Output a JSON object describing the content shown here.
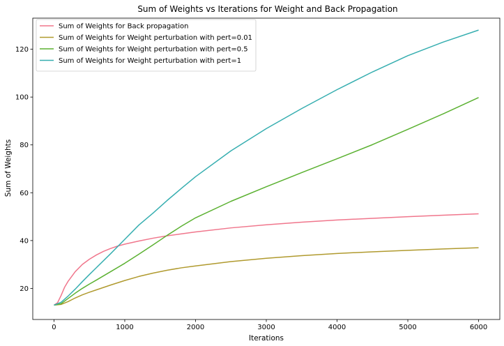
{
  "chart_data": {
    "type": "line",
    "title": "Sum of Weights vs Iterations for Weight and Back Propagation",
    "xlabel": "Iterations",
    "ylabel": "Sum of Weights",
    "xlim": [
      -300,
      6300
    ],
    "ylim": [
      7,
      133
    ],
    "xticks": [
      0,
      1000,
      2000,
      3000,
      4000,
      5000,
      6000
    ],
    "yticks": [
      20,
      40,
      60,
      80,
      100,
      120
    ],
    "grid": false,
    "legend_position": "top-left",
    "series": [
      {
        "name": "Sum of Weights for Back propagation",
        "color": "#f0768c",
        "x": [
          0,
          50,
          100,
          150,
          200,
          300,
          400,
          500,
          600,
          700,
          800,
          900,
          1000,
          1200,
          1400,
          1600,
          1800,
          2000,
          2500,
          3000,
          3500,
          4000,
          4500,
          5000,
          5500,
          6000
        ],
        "y": [
          13,
          14,
          17,
          20.5,
          23,
          27,
          30,
          32.2,
          34,
          35.5,
          36.7,
          37.7,
          38.5,
          39.8,
          41,
          42,
          42.8,
          43.6,
          45.3,
          46.6,
          47.7,
          48.6,
          49.3,
          50,
          50.6,
          51.2
        ]
      },
      {
        "name": "Sum of Weights for Weight perturbation with pert=0.01",
        "color": "#b09a2e",
        "x": [
          0,
          100,
          200,
          300,
          400,
          500,
          600,
          800,
          1000,
          1200,
          1400,
          1600,
          1800,
          2000,
          2500,
          3000,
          3500,
          4000,
          4500,
          5000,
          5500,
          6000
        ],
        "y": [
          13,
          13.3,
          14.5,
          16,
          17.3,
          18.4,
          19.4,
          21.4,
          23.3,
          25,
          26.4,
          27.6,
          28.6,
          29.4,
          31.2,
          32.6,
          33.7,
          34.6,
          35.3,
          35.9,
          36.5,
          37
        ]
      },
      {
        "name": "Sum of Weights for Weight perturbation with pert=0.5",
        "color": "#5bb131",
        "x": [
          0,
          100,
          200,
          300,
          400,
          500,
          600,
          800,
          1000,
          1200,
          1400,
          1600,
          1800,
          2000,
          2500,
          3000,
          3500,
          4000,
          4500,
          5000,
          5500,
          6000
        ],
        "y": [
          13,
          13.6,
          15.8,
          18,
          20,
          21.8,
          23.5,
          27,
          30.5,
          34.3,
          38.2,
          42.2,
          46,
          49.5,
          56.4,
          62.5,
          68.4,
          74.2,
          80.1,
          86.5,
          93,
          99.8
        ]
      },
      {
        "name": "Sum of Weights for Weight perturbation with pert=1",
        "color": "#36aeb0",
        "x": [
          0,
          100,
          200,
          300,
          400,
          500,
          600,
          800,
          1000,
          1200,
          1400,
          1600,
          1800,
          2000,
          2500,
          3000,
          3500,
          4000,
          4500,
          5000,
          5500,
          6000
        ],
        "y": [
          13,
          14.2,
          16.8,
          19.7,
          22.8,
          25.8,
          28.7,
          34.5,
          40.5,
          46.5,
          51.5,
          56.8,
          61.8,
          66.7,
          77.5,
          86.8,
          95.2,
          103.1,
          110.5,
          117.3,
          123,
          128
        ]
      }
    ]
  }
}
